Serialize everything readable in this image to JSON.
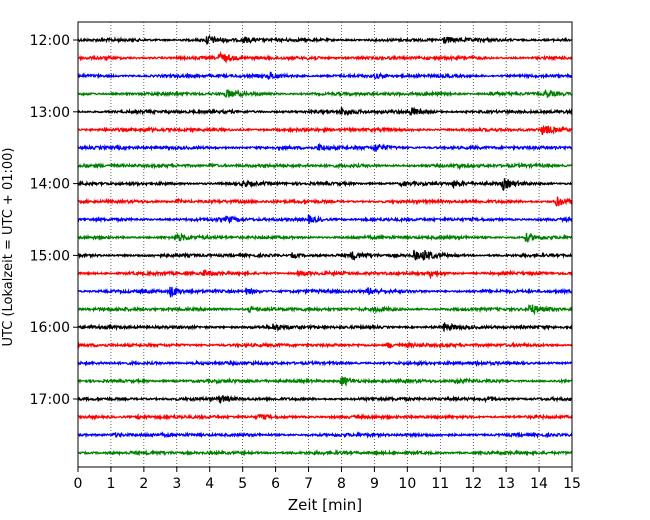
{
  "chart_data": {
    "type": "line",
    "xlabel": "Zeit  [min]",
    "ylabel": "UTC (Lokalzeit = UTC + 01:00)",
    "xlim": [
      0,
      15
    ],
    "x_ticks": [
      0,
      1,
      2,
      3,
      4,
      5,
      6,
      7,
      8,
      9,
      10,
      11,
      12,
      13,
      14,
      15
    ],
    "y_ticks": [
      "12:00",
      "13:00",
      "14:00",
      "15:00",
      "16:00",
      "17:00"
    ],
    "grid": "vertical dotted",
    "color_cycle": [
      "#000000",
      "#ff0000",
      "#0000ff",
      "#008000"
    ],
    "trace_start_times": [
      "12:00",
      "12:15",
      "12:30",
      "12:45",
      "13:00",
      "13:15",
      "13:30",
      "13:45",
      "14:00",
      "14:15",
      "14:30",
      "14:45",
      "15:00",
      "15:15",
      "15:30",
      "15:45",
      "16:00",
      "16:15",
      "16:30",
      "16:45",
      "17:00",
      "17:15",
      "17:30",
      "17:45"
    ],
    "trace_events": [
      [
        [
          3.9,
          2.0
        ],
        [
          5.0,
          1.2
        ],
        [
          11.1,
          1.5
        ]
      ],
      [
        [
          4.3,
          2.3
        ],
        [
          7.0,
          0.8
        ]
      ],
      [
        [
          5.8,
          1.4
        ],
        [
          9.0,
          0.8
        ]
      ],
      [
        [
          4.5,
          1.6
        ],
        [
          12.5,
          0.8
        ],
        [
          14.2,
          1.5
        ]
      ],
      [
        [
          8.0,
          1.8
        ],
        [
          10.1,
          1.5
        ]
      ],
      [
        [
          2.0,
          0.6
        ],
        [
          14.1,
          2.0
        ]
      ],
      [
        [
          7.3,
          1.2
        ],
        [
          9.0,
          1.8
        ]
      ],
      [
        [
          4.0,
          0.7
        ],
        [
          11.5,
          0.6
        ]
      ],
      [
        [
          5.0,
          0.9
        ],
        [
          9.8,
          0.8
        ],
        [
          11.4,
          1.2
        ],
        [
          12.9,
          2.2
        ]
      ],
      [
        [
          3.0,
          0.8
        ],
        [
          14.5,
          2.4
        ]
      ],
      [
        [
          4.5,
          1.1
        ],
        [
          7.0,
          1.5
        ]
      ],
      [
        [
          3.0,
          1.4
        ],
        [
          13.6,
          1.8
        ]
      ],
      [
        [
          6.5,
          1.0
        ],
        [
          8.3,
          1.5
        ],
        [
          10.2,
          1.8
        ],
        [
          10.5,
          1.6
        ]
      ],
      [
        [
          3.8,
          1.3
        ],
        [
          6.7,
          1.1
        ],
        [
          10.7,
          1.2
        ]
      ],
      [
        [
          2.8,
          2.3
        ],
        [
          5.1,
          1.2
        ],
        [
          8.8,
          1.4
        ]
      ],
      [
        [
          5.2,
          1.0
        ],
        [
          9.0,
          0.8
        ],
        [
          13.7,
          2.3
        ]
      ],
      [
        [
          5.9,
          1.3
        ],
        [
          11.1,
          1.6
        ]
      ],
      [
        [
          9.4,
          1.2
        ],
        [
          10.0,
          0.6
        ]
      ],
      [
        [
          3.5,
          0.5
        ],
        [
          12.0,
          0.6
        ]
      ],
      [
        [
          8.0,
          2.3
        ],
        [
          11.5,
          0.8
        ]
      ],
      [
        [
          4.3,
          1.5
        ],
        [
          12.4,
          0.9
        ]
      ],
      [
        [
          1.8,
          0.8
        ],
        [
          5.5,
          0.9
        ]
      ],
      [
        [
          1.1,
          0.8
        ]
      ],
      []
    ]
  }
}
